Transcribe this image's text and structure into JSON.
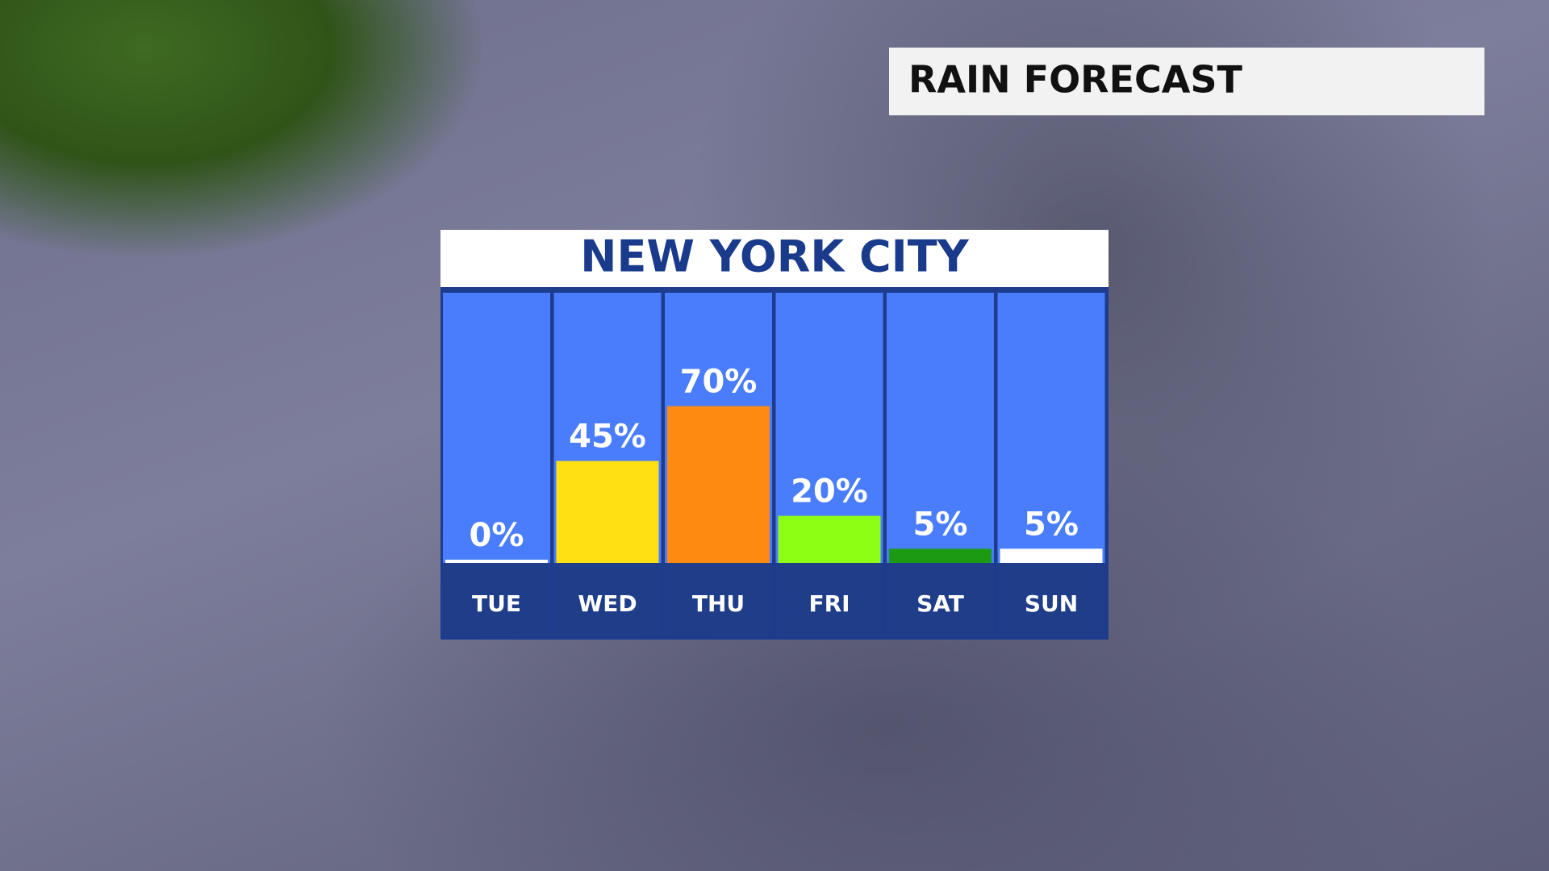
{
  "header": {
    "title": "RAIN FORECAST"
  },
  "chart_data": {
    "type": "bar",
    "title": "NEW YORK CITY",
    "categories": [
      "TUE",
      "WED",
      "THU",
      "FRI",
      "SAT",
      "SUN"
    ],
    "values": [
      0,
      45,
      70,
      20,
      5,
      5
    ],
    "value_labels": [
      "0%",
      "45%",
      "70%",
      "20%",
      "5%",
      "5%"
    ],
    "colors": [
      "#ffffff",
      "#ffe012",
      "#ff8a12",
      "#8cff14",
      "#1c9a14",
      "#ffffff"
    ]
  }
}
